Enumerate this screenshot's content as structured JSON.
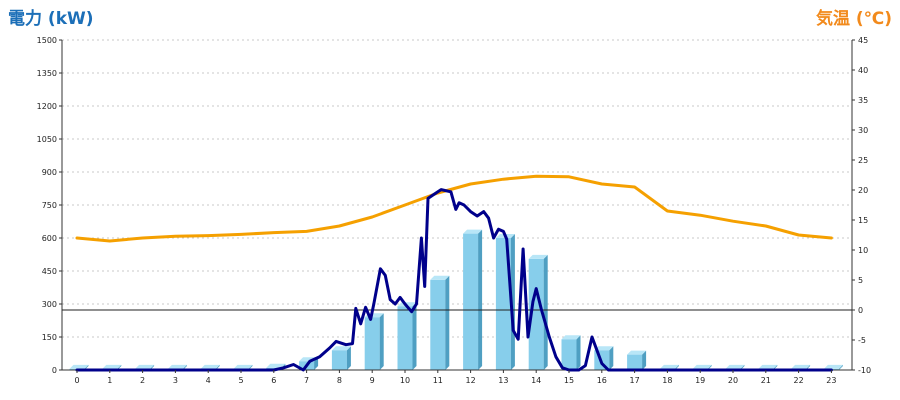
{
  "chart_data": {
    "type": "bar",
    "left_axis_title": "電力 (kW)",
    "right_axis_title": "気温 (℃)",
    "x_categories": [
      "0",
      "1",
      "2",
      "3",
      "4",
      "5",
      "6",
      "7",
      "8",
      "9",
      "10",
      "11",
      "12",
      "13",
      "14",
      "15",
      "16",
      "17",
      "18",
      "19",
      "20",
      "21",
      "22",
      "23"
    ],
    "left_axis": {
      "min": 0,
      "max": 1500,
      "ticks": [
        0,
        150,
        300,
        450,
        600,
        750,
        900,
        1050,
        1200,
        1350,
        1500
      ]
    },
    "right_axis": {
      "min": -10,
      "max": 45,
      "ticks": [
        -10,
        -5,
        0,
        5,
        10,
        15,
        20,
        25,
        30,
        35,
        40,
        45
      ]
    },
    "grid": true,
    "reference_line": {
      "axis": "right",
      "value": 0
    },
    "series": [
      {
        "type": "bar",
        "axis": "left",
        "color": "#87ceeb",
        "values": [
          5,
          5,
          5,
          5,
          5,
          5,
          10,
          40,
          90,
          240,
          290,
          410,
          620,
          600,
          505,
          140,
          90,
          70,
          5,
          5,
          5,
          5,
          5,
          5
        ]
      },
      {
        "type": "line",
        "axis": "left",
        "color": "#00008b",
        "points": [
          [
            0,
            0
          ],
          [
            1,
            0
          ],
          [
            2,
            0
          ],
          [
            3,
            0
          ],
          [
            4,
            0
          ],
          [
            5,
            0
          ],
          [
            6,
            0
          ],
          [
            6.3,
            10
          ],
          [
            6.6,
            25
          ],
          [
            6.9,
            0
          ],
          [
            7.1,
            40
          ],
          [
            7.4,
            60
          ],
          [
            7.7,
            100
          ],
          [
            7.9,
            130
          ],
          [
            8.2,
            115
          ],
          [
            8.4,
            120
          ],
          [
            8.5,
            280
          ],
          [
            8.65,
            210
          ],
          [
            8.8,
            285
          ],
          [
            8.95,
            230
          ],
          [
            9.05,
            300
          ],
          [
            9.25,
            460
          ],
          [
            9.4,
            430
          ],
          [
            9.55,
            320
          ],
          [
            9.7,
            300
          ],
          [
            9.85,
            330
          ],
          [
            10.0,
            300
          ],
          [
            10.2,
            265
          ],
          [
            10.35,
            300
          ],
          [
            10.5,
            600
          ],
          [
            10.6,
            380
          ],
          [
            10.7,
            780
          ],
          [
            10.9,
            800
          ],
          [
            11.1,
            820
          ],
          [
            11.4,
            810
          ],
          [
            11.55,
            730
          ],
          [
            11.65,
            760
          ],
          [
            11.8,
            750
          ],
          [
            12.0,
            720
          ],
          [
            12.2,
            700
          ],
          [
            12.4,
            720
          ],
          [
            12.55,
            690
          ],
          [
            12.7,
            600
          ],
          [
            12.85,
            640
          ],
          [
            13.0,
            630
          ],
          [
            13.1,
            595
          ],
          [
            13.3,
            180
          ],
          [
            13.45,
            140
          ],
          [
            13.6,
            550
          ],
          [
            13.75,
            150
          ],
          [
            13.9,
            310
          ],
          [
            14.0,
            370
          ],
          [
            14.15,
            280
          ],
          [
            14.4,
            150
          ],
          [
            14.6,
            60
          ],
          [
            14.8,
            10
          ],
          [
            15.0,
            0
          ],
          [
            15.3,
            0
          ],
          [
            15.5,
            20
          ],
          [
            15.7,
            150
          ],
          [
            15.85,
            90
          ],
          [
            16.0,
            30
          ],
          [
            16.2,
            0
          ],
          [
            16.5,
            0
          ],
          [
            17,
            0
          ],
          [
            18,
            0
          ],
          [
            19,
            0
          ],
          [
            20,
            0
          ],
          [
            21,
            0
          ],
          [
            22,
            0
          ],
          [
            23,
            0
          ]
        ]
      },
      {
        "type": "line",
        "axis": "right",
        "color": "#f5a000",
        "points": [
          [
            0,
            12
          ],
          [
            1,
            11.5
          ],
          [
            2,
            12
          ],
          [
            3,
            12.3
          ],
          [
            4,
            12.4
          ],
          [
            5,
            12.6
          ],
          [
            6,
            12.9
          ],
          [
            7,
            13.1
          ],
          [
            8,
            14
          ],
          [
            9,
            15.5
          ],
          [
            10,
            17.5
          ],
          [
            11,
            19.5
          ],
          [
            12,
            21
          ],
          [
            13,
            21.8
          ],
          [
            14,
            22.3
          ],
          [
            15,
            22.2
          ],
          [
            16,
            21
          ],
          [
            17,
            20.5
          ],
          [
            18,
            16.5
          ],
          [
            19,
            15.8
          ],
          [
            20,
            14.8
          ],
          [
            21,
            14
          ],
          [
            22,
            12.5
          ],
          [
            23,
            12
          ]
        ]
      }
    ]
  }
}
